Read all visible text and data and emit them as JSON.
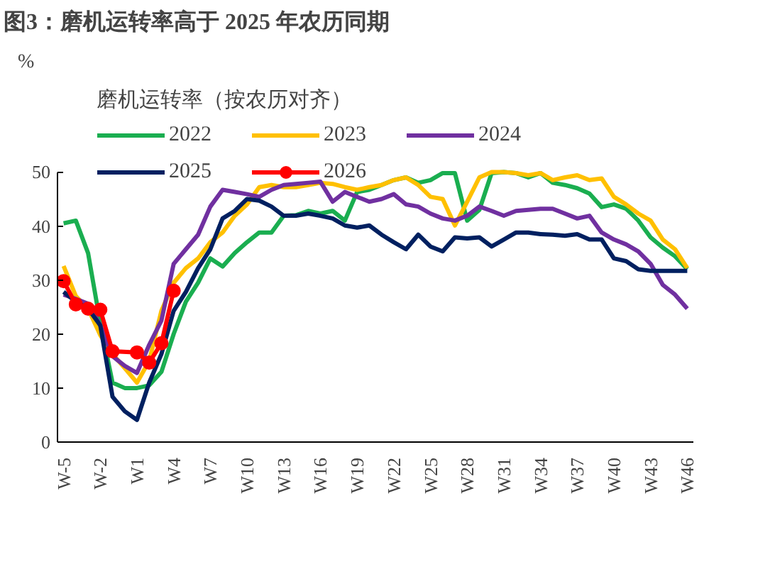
{
  "chart_data": {
    "type": "line",
    "title": "图3：磨机运转率高于 2025 年农历同期",
    "ylabel": "%",
    "legend_title": "磨机运转率（按农历对齐）",
    "legend": "top",
    "grid": false,
    "categories": [
      "W-5",
      null,
      null,
      "W-2",
      null,
      null,
      "W1",
      null,
      null,
      "W4",
      null,
      null,
      "W7",
      null,
      null,
      "W10",
      null,
      null,
      "W13",
      null,
      null,
      "W16",
      null,
      null,
      "W19",
      null,
      null,
      "W22",
      null,
      null,
      "W25",
      null,
      null,
      "W28",
      null,
      null,
      "W31",
      null,
      null,
      "W34",
      null,
      null,
      "W37",
      null,
      null,
      "W40",
      null,
      null,
      "W43",
      null,
      null,
      "W46"
    ],
    "ylim": [
      0,
      50
    ],
    "yticks": [
      0,
      10,
      20,
      30,
      40,
      50
    ],
    "series": [
      {
        "name": "2022",
        "color": "#1aae50",
        "marker": "none",
        "values": [
          40.5,
          41,
          35,
          22,
          11,
          10,
          10,
          10.5,
          13,
          20,
          26,
          29.5,
          34,
          32.5,
          35,
          37,
          38.8,
          38.8,
          41.9,
          42,
          42.8,
          42.3,
          42.8,
          41,
          46.3,
          46.7,
          47.6,
          48.5,
          49,
          48,
          48.5,
          49.8,
          49.8,
          41,
          43,
          49.8,
          50,
          49.8,
          49,
          49.8,
          48,
          47.6,
          47,
          46,
          43.5,
          44,
          43.2,
          41,
          37.9,
          36,
          34.4,
          32
        ]
      },
      {
        "name": "2023",
        "color": "#ffc000",
        "marker": "none",
        "values": [
          32.6,
          27,
          24.7,
          19.8,
          16.3,
          13.7,
          11,
          15,
          24.3,
          29.5,
          32.2,
          34,
          37,
          38.8,
          41.9,
          44,
          47.2,
          47.6,
          47.2,
          47.2,
          47.6,
          48,
          47.8,
          47.2,
          46.7,
          47.2,
          47.6,
          48.5,
          49,
          47.6,
          45.4,
          45,
          40.1,
          44.5,
          49,
          50,
          50,
          49.8,
          49.4,
          49.8,
          48.5,
          49,
          49.4,
          48.5,
          48.8,
          45.4,
          44,
          42.3,
          41,
          37.5,
          35.7,
          32.2
        ]
      },
      {
        "name": "2024",
        "color": "#7030a0",
        "marker": "none",
        "values": [
          27.3,
          26.5,
          25.6,
          21.6,
          15.9,
          14.1,
          12.8,
          18,
          22.5,
          33,
          35.7,
          38.4,
          43.6,
          46.7,
          46.3,
          45.9,
          45.4,
          46.7,
          47.6,
          47.8,
          48,
          48.2,
          44.5,
          46.3,
          45.4,
          44.5,
          45,
          45.9,
          44,
          43.6,
          42.3,
          41.4,
          41,
          41.9,
          43.6,
          42.8,
          41.9,
          42.8,
          43,
          43.2,
          43.2,
          42.3,
          41.4,
          41.9,
          38.8,
          37.5,
          36.6,
          35.3,
          33,
          29.1,
          27.3,
          24.7
        ]
      },
      {
        "name": "2025",
        "color": "#002060",
        "marker": "none",
        "values": [
          27.8,
          26,
          24.7,
          21.6,
          8.4,
          5.7,
          4.1,
          11,
          16.3,
          24.3,
          27.8,
          32.2,
          35.7,
          41.4,
          42.8,
          45,
          44.7,
          43.6,
          41.9,
          41.9,
          42.3,
          41.9,
          41.4,
          40.1,
          39.7,
          40.1,
          38.4,
          37,
          35.7,
          38.4,
          36.2,
          35.3,
          37.9,
          37.7,
          37.9,
          36.2,
          37.5,
          38.8,
          38.8,
          38.5,
          38.4,
          38.2,
          38.5,
          37.5,
          37.5,
          34,
          33.5,
          32,
          31.7,
          31.7,
          31.7,
          31.7
        ]
      },
      {
        "name": "2026",
        "color": "#ff0000",
        "marker": "circle",
        "values": [
          29.8,
          25.5,
          24.7,
          24.5,
          16.8,
          null,
          16.6,
          14.7,
          18.3,
          28,
          null,
          null,
          null,
          null,
          null,
          null,
          null,
          null,
          null,
          null,
          null,
          null,
          null,
          null,
          null,
          null,
          null,
          null,
          null,
          null,
          null,
          null,
          null,
          null,
          null,
          null,
          null,
          null,
          null,
          null,
          null,
          null,
          null,
          null,
          null,
          null,
          null,
          null,
          null,
          null,
          null,
          null
        ]
      }
    ]
  }
}
